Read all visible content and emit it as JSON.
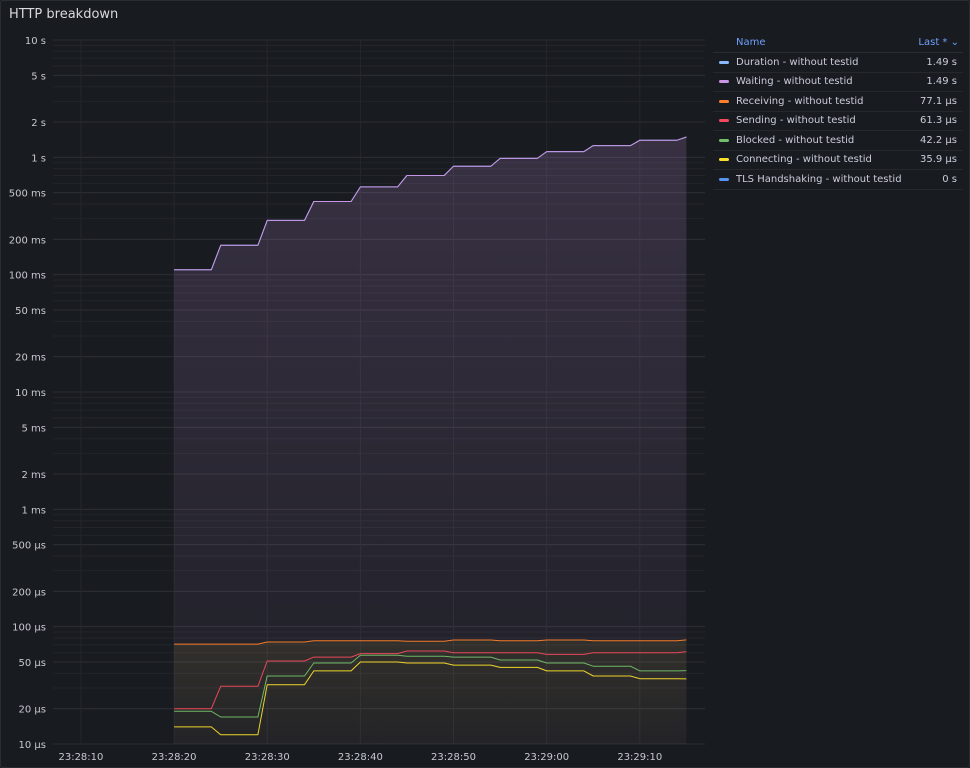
{
  "panel": {
    "title": "HTTP breakdown"
  },
  "legend": {
    "name_header": "Name",
    "last_header": "Last * ⌄"
  },
  "chart_data": {
    "type": "line",
    "title": "HTTP breakdown",
    "y_scale": "log",
    "y_unit": "seconds",
    "ylim": [
      1e-05,
      10
    ],
    "y_ticks": [
      10,
      5,
      2,
      1,
      0.5,
      0.2,
      0.1,
      0.05,
      0.02,
      0.01,
      0.005,
      0.002,
      0.001,
      0.0005,
      0.0002,
      0.0001,
      5e-05,
      2e-05,
      1e-05
    ],
    "y_tick_labels": [
      "10 s",
      "5 s",
      "2 s",
      "1 s",
      "500 ms",
      "200 ms",
      "100 ms",
      "50 ms",
      "20 ms",
      "10 ms",
      "5 ms",
      "2 ms",
      "1 ms",
      "500 µs",
      "200 µs",
      "100 µs",
      "50 µs",
      "20 µs",
      "10 µs"
    ],
    "x_unit": "time (HH:MM:SS)",
    "xlim": [
      "23:28:07",
      "23:29:17"
    ],
    "x_ticks": [
      "23:28:10",
      "23:28:20",
      "23:28:30",
      "23:28:40",
      "23:28:50",
      "23:29:00",
      "23:29:10"
    ],
    "grid": true,
    "legend_position": "right",
    "series": [
      {
        "name": "Duration - without testid",
        "color": "#8ab8ff",
        "last": "1.49 s",
        "points": [
          [
            "23:28:20",
            0.11
          ],
          [
            "23:28:24",
            0.11
          ],
          [
            "23:28:25",
            0.178
          ],
          [
            "23:28:29",
            0.178
          ],
          [
            "23:28:30",
            0.29
          ],
          [
            "23:28:34",
            0.29
          ],
          [
            "23:28:35",
            0.42
          ],
          [
            "23:28:39",
            0.42
          ],
          [
            "23:28:40",
            0.56
          ],
          [
            "23:28:44",
            0.56
          ],
          [
            "23:28:45",
            0.7
          ],
          [
            "23:28:49",
            0.7
          ],
          [
            "23:28:50",
            0.84
          ],
          [
            "23:28:54",
            0.84
          ],
          [
            "23:28:55",
            0.98
          ],
          [
            "23:28:59",
            0.98
          ],
          [
            "23:29:00",
            1.12
          ],
          [
            "23:29:04",
            1.12
          ],
          [
            "23:29:05",
            1.26
          ],
          [
            "23:29:09",
            1.26
          ],
          [
            "23:29:10",
            1.4
          ],
          [
            "23:29:14",
            1.4
          ],
          [
            "23:29:15",
            1.49
          ]
        ]
      },
      {
        "name": "Waiting - without testid",
        "color": "#ca95e5",
        "last": "1.49 s",
        "points": [
          [
            "23:28:20",
            0.11
          ],
          [
            "23:28:24",
            0.11
          ],
          [
            "23:28:25",
            0.178
          ],
          [
            "23:28:29",
            0.178
          ],
          [
            "23:28:30",
            0.29
          ],
          [
            "23:28:34",
            0.29
          ],
          [
            "23:28:35",
            0.42
          ],
          [
            "23:28:39",
            0.42
          ],
          [
            "23:28:40",
            0.56
          ],
          [
            "23:28:44",
            0.56
          ],
          [
            "23:28:45",
            0.7
          ],
          [
            "23:28:49",
            0.7
          ],
          [
            "23:28:50",
            0.84
          ],
          [
            "23:28:54",
            0.84
          ],
          [
            "23:28:55",
            0.98
          ],
          [
            "23:28:59",
            0.98
          ],
          [
            "23:29:00",
            1.12
          ],
          [
            "23:29:04",
            1.12
          ],
          [
            "23:29:05",
            1.26
          ],
          [
            "23:29:09",
            1.26
          ],
          [
            "23:29:10",
            1.4
          ],
          [
            "23:29:14",
            1.4
          ],
          [
            "23:29:15",
            1.49
          ]
        ]
      },
      {
        "name": "Receiving - without testid",
        "color": "#ff7f2a",
        "last": "77.1 µs",
        "points": [
          [
            "23:28:20",
            7.1e-05
          ],
          [
            "23:28:24",
            7.1e-05
          ],
          [
            "23:28:25",
            7.1e-05
          ],
          [
            "23:28:29",
            7.1e-05
          ],
          [
            "23:28:30",
            7.4e-05
          ],
          [
            "23:28:34",
            7.4e-05
          ],
          [
            "23:28:35",
            7.6e-05
          ],
          [
            "23:28:44",
            7.6e-05
          ],
          [
            "23:28:45",
            7.5e-05
          ],
          [
            "23:28:49",
            7.5e-05
          ],
          [
            "23:28:50",
            7.7e-05
          ],
          [
            "23:28:54",
            7.7e-05
          ],
          [
            "23:28:55",
            7.6e-05
          ],
          [
            "23:28:59",
            7.6e-05
          ],
          [
            "23:29:00",
            7.7e-05
          ],
          [
            "23:29:04",
            7.7e-05
          ],
          [
            "23:29:05",
            7.6e-05
          ],
          [
            "23:29:14",
            7.6e-05
          ],
          [
            "23:29:15",
            7.71e-05
          ]
        ]
      },
      {
        "name": "Sending - without testid",
        "color": "#f2495c",
        "last": "61.3 µs",
        "points": [
          [
            "23:28:20",
            2e-05
          ],
          [
            "23:28:24",
            2e-05
          ],
          [
            "23:28:25",
            3.1e-05
          ],
          [
            "23:28:29",
            3.1e-05
          ],
          [
            "23:28:30",
            5.1e-05
          ],
          [
            "23:28:34",
            5.1e-05
          ],
          [
            "23:28:35",
            5.5e-05
          ],
          [
            "23:28:39",
            5.5e-05
          ],
          [
            "23:28:40",
            5.9e-05
          ],
          [
            "23:28:44",
            5.9e-05
          ],
          [
            "23:28:45",
            6.2e-05
          ],
          [
            "23:28:49",
            6.2e-05
          ],
          [
            "23:28:50",
            6e-05
          ],
          [
            "23:28:54",
            6e-05
          ],
          [
            "23:28:55",
            6e-05
          ],
          [
            "23:28:59",
            6e-05
          ],
          [
            "23:29:00",
            5.8e-05
          ],
          [
            "23:29:04",
            5.8e-05
          ],
          [
            "23:29:05",
            6e-05
          ],
          [
            "23:29:14",
            6e-05
          ],
          [
            "23:29:15",
            6.13e-05
          ]
        ]
      },
      {
        "name": "Blocked - without testid",
        "color": "#73bf69",
        "last": "42.2 µs",
        "points": [
          [
            "23:28:20",
            1.9e-05
          ],
          [
            "23:28:24",
            1.9e-05
          ],
          [
            "23:28:25",
            1.7e-05
          ],
          [
            "23:28:29",
            1.7e-05
          ],
          [
            "23:28:30",
            3.8e-05
          ],
          [
            "23:28:34",
            3.8e-05
          ],
          [
            "23:28:35",
            4.9e-05
          ],
          [
            "23:28:39",
            4.9e-05
          ],
          [
            "23:28:40",
            5.7e-05
          ],
          [
            "23:28:44",
            5.7e-05
          ],
          [
            "23:28:45",
            5.6e-05
          ],
          [
            "23:28:49",
            5.6e-05
          ],
          [
            "23:28:50",
            5.5e-05
          ],
          [
            "23:28:54",
            5.5e-05
          ],
          [
            "23:28:55",
            5.2e-05
          ],
          [
            "23:28:59",
            5.2e-05
          ],
          [
            "23:29:00",
            4.9e-05
          ],
          [
            "23:29:04",
            4.9e-05
          ],
          [
            "23:29:05",
            4.6e-05
          ],
          [
            "23:29:09",
            4.6e-05
          ],
          [
            "23:29:10",
            4.2e-05
          ],
          [
            "23:29:14",
            4.2e-05
          ],
          [
            "23:29:15",
            4.22e-05
          ]
        ]
      },
      {
        "name": "Connecting - without testid",
        "color": "#fade2a",
        "last": "35.9 µs",
        "points": [
          [
            "23:28:20",
            1.4e-05
          ],
          [
            "23:28:24",
            1.4e-05
          ],
          [
            "23:28:25",
            1.2e-05
          ],
          [
            "23:28:29",
            1.2e-05
          ],
          [
            "23:28:30",
            3.2e-05
          ],
          [
            "23:28:34",
            3.2e-05
          ],
          [
            "23:28:35",
            4.2e-05
          ],
          [
            "23:28:39",
            4.2e-05
          ],
          [
            "23:28:40",
            5e-05
          ],
          [
            "23:28:44",
            5e-05
          ],
          [
            "23:28:45",
            4.9e-05
          ],
          [
            "23:28:49",
            4.9e-05
          ],
          [
            "23:28:50",
            4.7e-05
          ],
          [
            "23:28:54",
            4.7e-05
          ],
          [
            "23:28:55",
            4.5e-05
          ],
          [
            "23:28:59",
            4.5e-05
          ],
          [
            "23:29:00",
            4.2e-05
          ],
          [
            "23:29:04",
            4.2e-05
          ],
          [
            "23:29:05",
            3.8e-05
          ],
          [
            "23:29:09",
            3.8e-05
          ],
          [
            "23:29:10",
            3.6e-05
          ],
          [
            "23:29:14",
            3.6e-05
          ],
          [
            "23:29:15",
            3.59e-05
          ]
        ]
      },
      {
        "name": "TLS Handshaking - without testid",
        "color": "#5794f2",
        "last": "0 s",
        "points": []
      }
    ]
  }
}
